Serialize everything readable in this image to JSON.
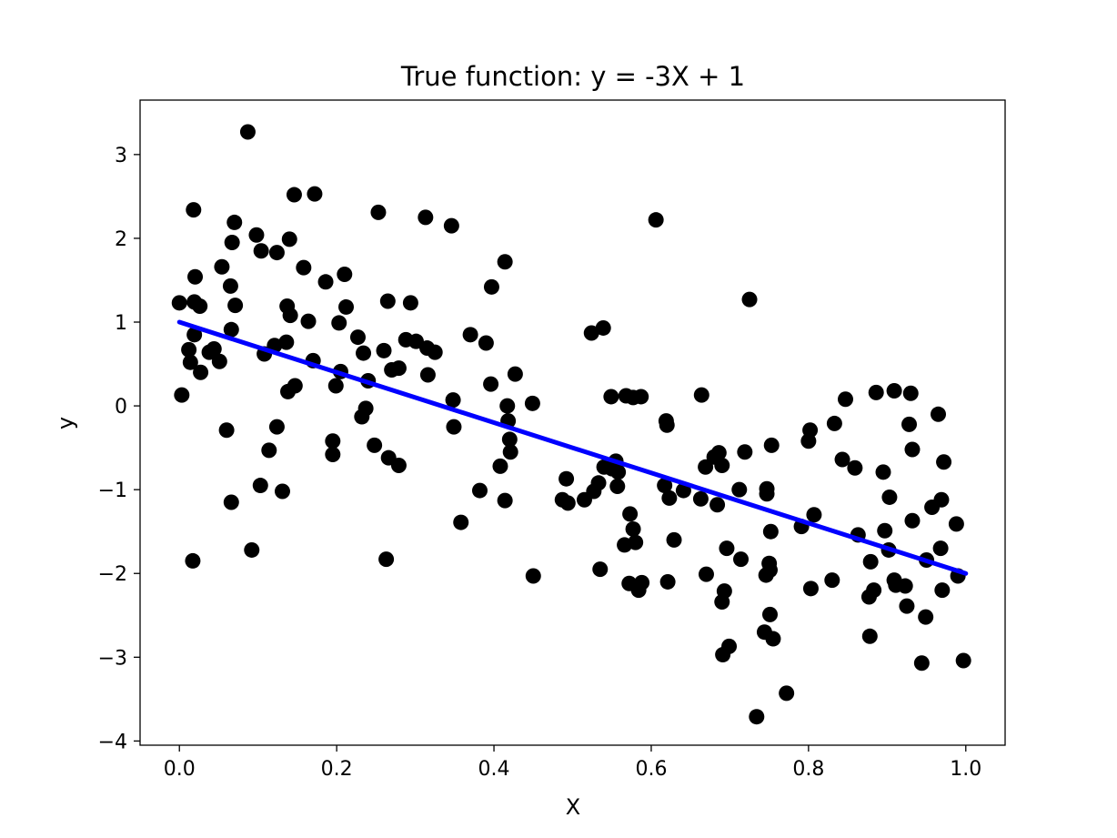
{
  "chart_data": {
    "type": "scatter",
    "title": "True function: y = -3X + 1",
    "xlabel": "X",
    "ylabel": "y",
    "xlim": [
      -0.05,
      1.05
    ],
    "ylim": [
      -4.05,
      3.65
    ],
    "grid": false,
    "xticks": [
      0.0,
      0.2,
      0.4,
      0.6,
      0.8,
      1.0
    ],
    "xtick_labels": [
      "0.0",
      "0.2",
      "0.4",
      "0.6",
      "0.8",
      "1.0"
    ],
    "yticks": [
      3,
      2,
      1,
      0,
      -1,
      -2,
      -3,
      -4
    ],
    "ytick_labels": [
      "3",
      "2",
      "1",
      "0",
      "−1",
      "−2",
      "−3",
      "−4"
    ],
    "point_color": "#000000",
    "line_color": "#0000ff",
    "line": {
      "x": [
        0.0,
        1.0
      ],
      "y": [
        1.0,
        -2.0
      ]
    },
    "points": [
      [
        0.0,
        1.23
      ],
      [
        0.003,
        0.13
      ],
      [
        0.012,
        0.67
      ],
      [
        0.014,
        0.52
      ],
      [
        0.017,
        -1.85
      ],
      [
        0.018,
        2.34
      ],
      [
        0.019,
        0.85
      ],
      [
        0.019,
        1.24
      ],
      [
        0.02,
        1.54
      ],
      [
        0.026,
        1.19
      ],
      [
        0.027,
        0.4
      ],
      [
        0.038,
        0.64
      ],
      [
        0.044,
        0.68
      ],
      [
        0.051,
        0.53
      ],
      [
        0.054,
        1.66
      ],
      [
        0.06,
        -0.29
      ],
      [
        0.065,
        1.43
      ],
      [
        0.066,
        0.91
      ],
      [
        0.066,
        -1.15
      ],
      [
        0.067,
        1.95
      ],
      [
        0.07,
        2.19
      ],
      [
        0.071,
        1.2
      ],
      [
        0.087,
        3.27
      ],
      [
        0.092,
        -1.72
      ],
      [
        0.098,
        2.04
      ],
      [
        0.103,
        -0.95
      ],
      [
        0.104,
        1.85
      ],
      [
        0.108,
        0.62
      ],
      [
        0.114,
        -0.53
      ],
      [
        0.121,
        0.72
      ],
      [
        0.124,
        1.83
      ],
      [
        0.124,
        -0.25
      ],
      [
        0.131,
        -1.02
      ],
      [
        0.136,
        0.76
      ],
      [
        0.137,
        1.19
      ],
      [
        0.138,
        0.17
      ],
      [
        0.14,
        1.99
      ],
      [
        0.141,
        1.08
      ],
      [
        0.146,
        2.52
      ],
      [
        0.147,
        0.24
      ],
      [
        0.158,
        1.65
      ],
      [
        0.164,
        1.01
      ],
      [
        0.17,
        0.54
      ],
      [
        0.172,
        2.53
      ],
      [
        0.186,
        1.48
      ],
      [
        0.195,
        -0.42
      ],
      [
        0.195,
        -0.58
      ],
      [
        0.199,
        0.24
      ],
      [
        0.203,
        0.99
      ],
      [
        0.205,
        0.41
      ],
      [
        0.21,
        1.57
      ],
      [
        0.212,
        1.18
      ],
      [
        0.227,
        0.82
      ],
      [
        0.232,
        -0.13
      ],
      [
        0.234,
        0.63
      ],
      [
        0.237,
        -0.03
      ],
      [
        0.24,
        0.3
      ],
      [
        0.248,
        -0.47
      ],
      [
        0.253,
        2.31
      ],
      [
        0.26,
        0.66
      ],
      [
        0.263,
        -1.83
      ],
      [
        0.265,
        1.25
      ],
      [
        0.266,
        -0.62
      ],
      [
        0.27,
        0.43
      ],
      [
        0.279,
        0.45
      ],
      [
        0.279,
        -0.71
      ],
      [
        0.288,
        0.79
      ],
      [
        0.294,
        1.23
      ],
      [
        0.301,
        0.77
      ],
      [
        0.313,
        2.25
      ],
      [
        0.315,
        0.69
      ],
      [
        0.316,
        0.37
      ],
      [
        0.325,
        0.64
      ],
      [
        0.346,
        2.15
      ],
      [
        0.348,
        0.07
      ],
      [
        0.349,
        -0.25
      ],
      [
        0.358,
        -1.39
      ],
      [
        0.37,
        0.85
      ],
      [
        0.382,
        -1.01
      ],
      [
        0.39,
        0.75
      ],
      [
        0.396,
        0.26
      ],
      [
        0.397,
        1.42
      ],
      [
        0.408,
        -0.72
      ],
      [
        0.414,
        1.72
      ],
      [
        0.414,
        -1.13
      ],
      [
        0.417,
        0.0
      ],
      [
        0.418,
        -0.18
      ],
      [
        0.42,
        -0.4
      ],
      [
        0.421,
        -0.55
      ],
      [
        0.427,
        0.38
      ],
      [
        0.449,
        0.03
      ],
      [
        0.45,
        -2.03
      ],
      [
        0.487,
        -1.12
      ],
      [
        0.492,
        -0.87
      ],
      [
        0.494,
        -1.16
      ],
      [
        0.515,
        -1.12
      ],
      [
        0.524,
        0.87
      ],
      [
        0.527,
        -1.02
      ],
      [
        0.533,
        -0.92
      ],
      [
        0.535,
        -1.95
      ],
      [
        0.539,
        0.93
      ],
      [
        0.54,
        -0.73
      ],
      [
        0.549,
        0.11
      ],
      [
        0.55,
        -0.75
      ],
      [
        0.555,
        -0.66
      ],
      [
        0.557,
        -0.96
      ],
      [
        0.558,
        -0.79
      ],
      [
        0.566,
        -1.66
      ],
      [
        0.568,
        0.12
      ],
      [
        0.572,
        -2.12
      ],
      [
        0.573,
        -1.29
      ],
      [
        0.577,
        -1.47
      ],
      [
        0.577,
        0.1
      ],
      [
        0.58,
        -1.63
      ],
      [
        0.584,
        -2.2
      ],
      [
        0.587,
        0.11
      ],
      [
        0.588,
        -2.11
      ],
      [
        0.606,
        2.22
      ],
      [
        0.617,
        -0.95
      ],
      [
        0.619,
        -0.18
      ],
      [
        0.62,
        -0.23
      ],
      [
        0.621,
        -2.1
      ],
      [
        0.623,
        -1.1
      ],
      [
        0.629,
        -1.6
      ],
      [
        0.641,
        -1.01
      ],
      [
        0.663,
        -1.11
      ],
      [
        0.664,
        0.13
      ],
      [
        0.669,
        -0.73
      ],
      [
        0.67,
        -2.01
      ],
      [
        0.68,
        -0.61
      ],
      [
        0.684,
        -1.18
      ],
      [
        0.686,
        -0.56
      ],
      [
        0.69,
        -2.34
      ],
      [
        0.69,
        -0.71
      ],
      [
        0.691,
        -2.97
      ],
      [
        0.693,
        -2.21
      ],
      [
        0.696,
        -1.7
      ],
      [
        0.699,
        -2.87
      ],
      [
        0.712,
        -1.0
      ],
      [
        0.714,
        -1.83
      ],
      [
        0.719,
        -0.55
      ],
      [
        0.725,
        1.27
      ],
      [
        0.734,
        -3.71
      ],
      [
        0.744,
        -2.7
      ],
      [
        0.746,
        -2.02
      ],
      [
        0.747,
        -1.05
      ],
      [
        0.747,
        -0.99
      ],
      [
        0.75,
        -1.88
      ],
      [
        0.751,
        -1.96
      ],
      [
        0.751,
        -2.49
      ],
      [
        0.752,
        -1.5
      ],
      [
        0.753,
        -0.47
      ],
      [
        0.755,
        -2.78
      ],
      [
        0.772,
        -3.43
      ],
      [
        0.791,
        -1.44
      ],
      [
        0.8,
        -0.42
      ],
      [
        0.802,
        -0.29
      ],
      [
        0.803,
        -2.18
      ],
      [
        0.807,
        -1.3
      ],
      [
        0.83,
        -2.08
      ],
      [
        0.833,
        -0.21
      ],
      [
        0.843,
        -0.64
      ],
      [
        0.847,
        0.08
      ],
      [
        0.859,
        -0.74
      ],
      [
        0.863,
        -1.54
      ],
      [
        0.877,
        -2.28
      ],
      [
        0.878,
        -2.75
      ],
      [
        0.879,
        -1.86
      ],
      [
        0.883,
        -2.2
      ],
      [
        0.886,
        0.16
      ],
      [
        0.895,
        -0.79
      ],
      [
        0.897,
        -1.49
      ],
      [
        0.902,
        -1.72
      ],
      [
        0.903,
        -1.09
      ],
      [
        0.909,
        -2.08
      ],
      [
        0.909,
        0.18
      ],
      [
        0.911,
        -2.14
      ],
      [
        0.923,
        -2.15
      ],
      [
        0.925,
        -2.39
      ],
      [
        0.928,
        -0.22
      ],
      [
        0.93,
        0.15
      ],
      [
        0.932,
        -0.52
      ],
      [
        0.932,
        -1.37
      ],
      [
        0.944,
        -3.07
      ],
      [
        0.949,
        -2.52
      ],
      [
        0.95,
        -1.84
      ],
      [
        0.957,
        -1.21
      ],
      [
        0.965,
        -0.1
      ],
      [
        0.968,
        -1.7
      ],
      [
        0.969,
        -1.12
      ],
      [
        0.97,
        -2.2
      ],
      [
        0.972,
        -0.67
      ],
      [
        0.988,
        -1.41
      ],
      [
        0.99,
        -2.03
      ],
      [
        0.997,
        -3.04
      ]
    ]
  }
}
